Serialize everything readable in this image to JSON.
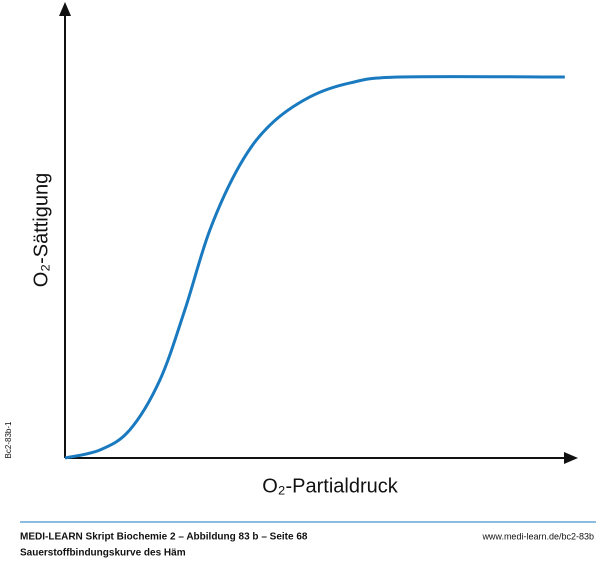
{
  "chart_data": {
    "type": "line",
    "x_label": "O₂-Partialdruck",
    "y_label": "O₂-Sättigung",
    "x": [
      0,
      6.9,
      12.7,
      18.6,
      23.5,
      28.4,
      34.3,
      40.2,
      48,
      55.9,
      65.7,
      98
    ],
    "series": [
      {
        "color": "#1a7ac0",
        "values": [
          0,
          1.8,
          6.2,
          17.2,
          32.7,
          50.3,
          64.7,
          73.5,
          79.7,
          82.8,
          84.1,
          84.1
        ]
      }
    ],
    "xlim": [
      0,
      100
    ],
    "ylim": [
      0,
      100
    ]
  },
  "footer": {
    "title": "MEDI-LEARN Skript Biochemie 2 – Abbildung 83 b – Seite 68",
    "url": "www.medi-learn.de/bc2-83b",
    "caption": "Sauerstoffbindungskurve des Häm",
    "code": "Bc2-83b-1"
  }
}
